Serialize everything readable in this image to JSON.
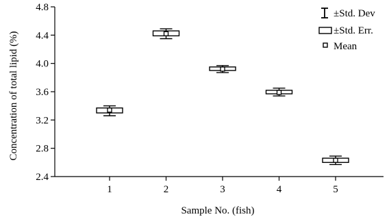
{
  "chart_data": {
    "type": "box",
    "xlabel": "Sample No. (fish)",
    "ylabel": "Concentration of total lipid (%)",
    "categories": [
      "1",
      "2",
      "3",
      "4",
      "5"
    ],
    "ylim": [
      2.4,
      4.8
    ],
    "yticks": [
      "2.4",
      "2.8",
      "3.2",
      "3.6",
      "4.0",
      "4.4",
      "4.8"
    ],
    "series": [
      {
        "name": "±Std. Dev",
        "low": [
          3.26,
          4.35,
          3.87,
          3.54,
          2.57
        ],
        "high": [
          3.4,
          4.49,
          3.97,
          3.65,
          2.69
        ]
      },
      {
        "name": "±Std. Err.",
        "low": [
          3.3,
          4.39,
          3.9,
          3.57,
          2.6
        ],
        "high": [
          3.37,
          4.46,
          3.95,
          3.62,
          2.66
        ]
      },
      {
        "name": "Mean",
        "values": [
          3.34,
          4.42,
          3.92,
          3.59,
          2.63
        ]
      }
    ],
    "legend_position": "top-right",
    "grid": false
  }
}
